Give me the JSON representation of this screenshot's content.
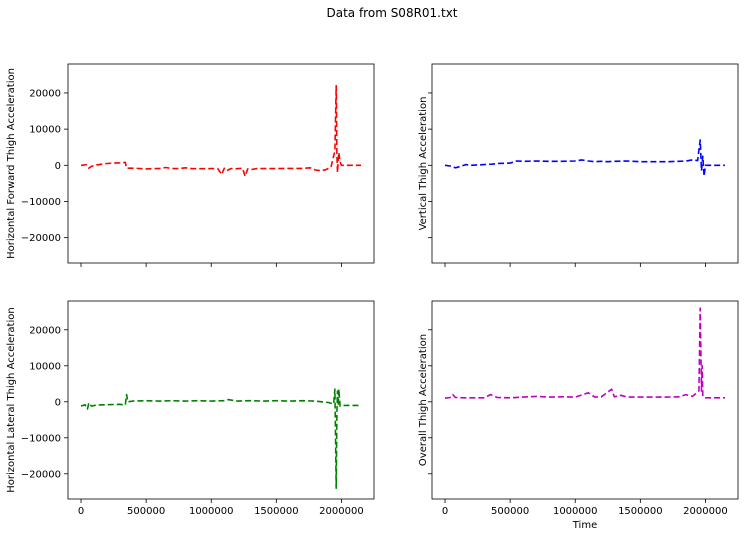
{
  "figure": {
    "title": "Data from S08R01.txt"
  },
  "chart_data": [
    {
      "type": "line",
      "title": "",
      "xlabel": "",
      "ylabel": "Horizontal Forward Thigh Acceleration",
      "xlim": [
        -100000,
        2250000
      ],
      "ylim": [
        -27000,
        28000
      ],
      "xticks": [
        0,
        500000,
        1000000,
        1500000,
        2000000
      ],
      "xtick_labels": [
        "0",
        "500000",
        "1000000",
        "1500000",
        "2000000"
      ],
      "show_xtick_labels": false,
      "yticks": [
        -20000,
        -10000,
        0,
        10000,
        20000
      ],
      "ytick_labels": [
        "−20000",
        "−10000",
        "0",
        "10000",
        "20000"
      ],
      "show_ytick_labels": true,
      "grid": false,
      "series": [
        {
          "color": "#ff0000",
          "linestyle": "dashed",
          "x": [
            0,
            20000,
            40000,
            60000,
            80000,
            120000,
            160000,
            200000,
            250000,
            300000,
            340000,
            350000,
            360000,
            400000,
            500000,
            550000,
            600000,
            650000,
            700000,
            750000,
            800000,
            850000,
            900000,
            950000,
            1000000,
            1050000,
            1080000,
            1100000,
            1120000,
            1150000,
            1200000,
            1240000,
            1260000,
            1280000,
            1300000,
            1350000,
            1400000,
            1500000,
            1600000,
            1700000,
            1760000,
            1800000,
            1840000,
            1880000,
            1920000,
            1950000,
            1960000,
            1965000,
            1970000,
            1975000,
            1980000,
            1990000,
            2000000,
            2020000,
            2050000,
            2100000,
            2150000
          ],
          "y": [
            0,
            50,
            200,
            -800,
            -300,
            100,
            300,
            500,
            600,
            700,
            800,
            -800,
            -800,
            -800,
            -1000,
            -900,
            -900,
            -600,
            -900,
            -900,
            -700,
            -900,
            -950,
            -950,
            -900,
            -900,
            -2500,
            -800,
            -1500,
            -900,
            -950,
            -800,
            -3000,
            -1000,
            -1200,
            -900,
            -900,
            -900,
            -850,
            -850,
            -700,
            -1300,
            -1500,
            -1200,
            -500,
            4000,
            22000,
            3000,
            -2000,
            1500,
            3500,
            1000,
            0,
            0,
            0,
            0,
            0
          ]
        }
      ]
    },
    {
      "type": "line",
      "title": "",
      "xlabel": "",
      "ylabel": "Vertical Thigh Acceleration",
      "xlim": [
        -100000,
        2250000
      ],
      "ylim": [
        -27000,
        28000
      ],
      "xticks": [
        0,
        500000,
        1000000,
        1500000,
        2000000
      ],
      "xtick_labels": [
        "0",
        "500000",
        "1000000",
        "1500000",
        "2000000"
      ],
      "show_xtick_labels": false,
      "yticks": [
        -20000,
        -10000,
        0,
        10000,
        20000
      ],
      "ytick_labels": [
        "−20000",
        "−10000",
        "0",
        "10000",
        "20000"
      ],
      "show_ytick_labels": false,
      "grid": false,
      "series": [
        {
          "color": "#0000ff",
          "linestyle": "dashed",
          "x": [
            0,
            40000,
            80000,
            120000,
            160000,
            200000,
            300000,
            360000,
            400000,
            500000,
            550000,
            600000,
            700000,
            800000,
            900000,
            1000000,
            1050000,
            1100000,
            1150000,
            1200000,
            1250000,
            1300000,
            1400000,
            1500000,
            1600000,
            1700000,
            1800000,
            1850000,
            1900000,
            1940000,
            1960000,
            1970000,
            1980000,
            1990000,
            2000000,
            2020000,
            2050000,
            2100000,
            2150000
          ],
          "y": [
            0,
            -200,
            -700,
            -300,
            200,
            0,
            200,
            300,
            500,
            600,
            1200,
            1100,
            1200,
            1100,
            1100,
            1200,
            1500,
            1200,
            1000,
            1100,
            1000,
            1100,
            1200,
            1000,
            1000,
            1000,
            1100,
            1200,
            1500,
            1300,
            7000,
            -1500,
            2500,
            -3000,
            0,
            0,
            0,
            0,
            0
          ]
        }
      ]
    },
    {
      "type": "line",
      "title": "",
      "xlabel": "",
      "ylabel": "Horizontal Lateral Thigh Acceleration",
      "xlim": [
        -100000,
        2250000
      ],
      "ylim": [
        -27000,
        28000
      ],
      "xticks": [
        0,
        500000,
        1000000,
        1500000,
        2000000
      ],
      "xtick_labels": [
        "0",
        "500000",
        "1000000",
        "1500000",
        "2000000"
      ],
      "show_xtick_labels": true,
      "yticks": [
        -20000,
        -10000,
        0,
        10000,
        20000
      ],
      "ytick_labels": [
        "−20000",
        "−10000",
        "0",
        "10000",
        "20000"
      ],
      "show_ytick_labels": true,
      "grid": false,
      "series": [
        {
          "color": "#008000",
          "linestyle": "dashed",
          "x": [
            0,
            30000,
            50000,
            60000,
            80000,
            120000,
            200000,
            300000,
            340000,
            350000,
            360000,
            400000,
            500000,
            600000,
            700000,
            800000,
            900000,
            1000000,
            1100000,
            1130000,
            1200000,
            1300000,
            1400000,
            1500000,
            1600000,
            1700000,
            1800000,
            1850000,
            1900000,
            1940000,
            1950000,
            1960000,
            1965000,
            1970000,
            1975000,
            1980000,
            1990000,
            2000000,
            2050000,
            2100000,
            2150000
          ],
          "y": [
            -1200,
            -800,
            -2000,
            -300,
            -1200,
            -900,
            -800,
            -700,
            -900,
            2000,
            0,
            200,
            300,
            200,
            300,
            200,
            300,
            200,
            300,
            600,
            200,
            300,
            200,
            300,
            200,
            300,
            200,
            0,
            -200,
            -600,
            3500,
            -24000,
            -3000,
            3000,
            -1000,
            3500,
            -1200,
            -1000,
            -1000,
            -1000,
            -1000
          ]
        }
      ]
    },
    {
      "type": "line",
      "title": "",
      "xlabel": "Time",
      "ylabel": "Overall Thigh Acceleration",
      "xlim": [
        -100000,
        2250000
      ],
      "ylim": [
        -27000,
        28000
      ],
      "xticks": [
        0,
        500000,
        1000000,
        1500000,
        2000000
      ],
      "xtick_labels": [
        "0",
        "500000",
        "1000000",
        "1500000",
        "2000000"
      ],
      "show_xtick_labels": true,
      "yticks": [
        -20000,
        -10000,
        0,
        10000,
        20000
      ],
      "ytick_labels": [
        "−20000",
        "−10000",
        "0",
        "10000",
        "20000"
      ],
      "show_ytick_labels": false,
      "grid": false,
      "series": [
        {
          "color": "#bf00bf",
          "linestyle": "dashed",
          "x": [
            0,
            40000,
            60000,
            80000,
            150000,
            300000,
            350000,
            400000,
            500000,
            600000,
            700000,
            800000,
            900000,
            1000000,
            1100000,
            1150000,
            1200000,
            1280000,
            1300000,
            1350000,
            1400000,
            1500000,
            1600000,
            1700000,
            1800000,
            1850000,
            1900000,
            1950000,
            1960000,
            1970000,
            1975000,
            1980000,
            1990000,
            2000000,
            2050000,
            2100000,
            2150000
          ],
          "y": [
            1000,
            1200,
            2000,
            1200,
            1100,
            1100,
            2000,
            1200,
            1100,
            1300,
            1500,
            1300,
            1400,
            1300,
            2500,
            1300,
            1400,
            3500,
            1400,
            1800,
            1300,
            1300,
            1300,
            1300,
            1400,
            2000,
            1500,
            3000,
            26000,
            3000,
            10000,
            1500,
            1200,
            1100,
            1100,
            1100,
            1100
          ]
        }
      ]
    }
  ]
}
